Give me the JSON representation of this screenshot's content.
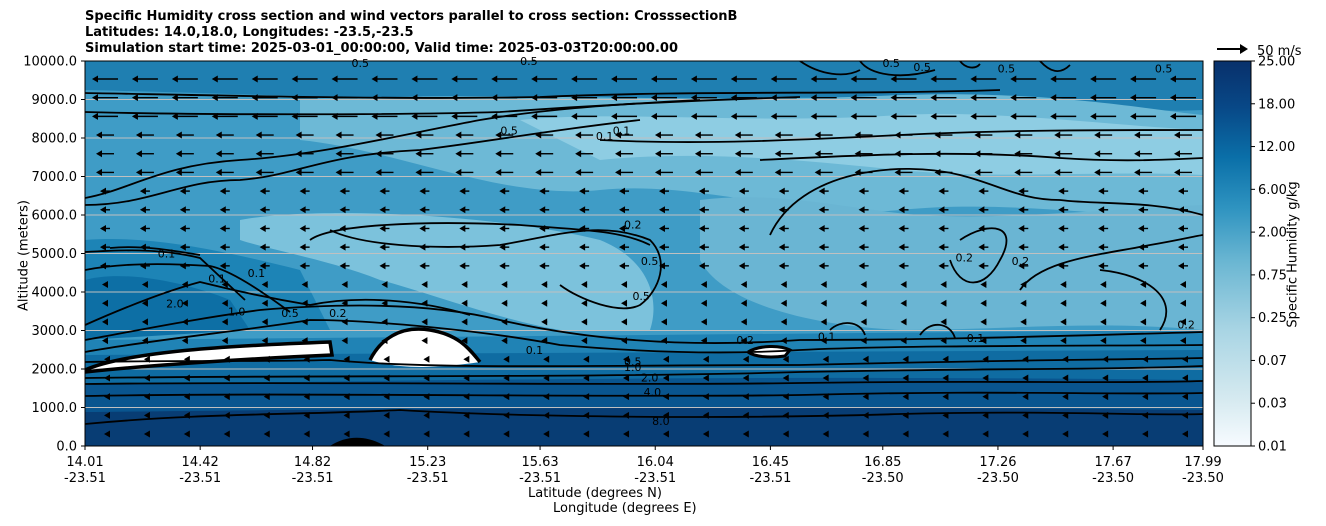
{
  "chart_data": {
    "type": "contourf-cross-section",
    "title_lines": [
      "Specific Humidity cross section and wind vectors parallel to cross section: CrosssectionB",
      "Latitudes: 14.0,18.0, Longitudes: -23.5,-23.5",
      "Simulation start time: 2025-03-01_00:00:00, Valid time: 2025-03-03T20:00:00.00"
    ],
    "ylabel": "Altitude (meters)",
    "xlabel_lat": "Latitude (degrees N)",
    "xlabel_lon": "Longitude (degrees E)",
    "ylim": [
      0,
      10000
    ],
    "y_ticks": [
      "0.0",
      "1000.0",
      "2000.0",
      "3000.0",
      "4000.0",
      "5000.0",
      "6000.0",
      "7000.0",
      "8000.0",
      "9000.0",
      "10000.0"
    ],
    "y_tick_values": [
      0,
      1000,
      2000,
      3000,
      4000,
      5000,
      6000,
      7000,
      8000,
      9000,
      10000
    ],
    "x_ticks_lat": [
      "14.01",
      "14.42",
      "14.82",
      "15.23",
      "15.63",
      "16.04",
      "16.45",
      "16.85",
      "17.26",
      "17.67",
      "17.99"
    ],
    "x_ticks_lon": [
      "-23.51",
      "-23.51",
      "-23.51",
      "-23.51",
      "-23.51",
      "-23.51",
      "-23.51",
      "-23.50",
      "-23.50",
      "-23.50",
      "-23.50"
    ],
    "x_tick_values": [
      14.01,
      14.42,
      14.82,
      15.23,
      15.63,
      16.04,
      16.45,
      16.85,
      17.26,
      17.67,
      17.99
    ],
    "xlim": [
      14.01,
      17.99
    ],
    "colorbar": {
      "label": "Specific Humidity g/kg",
      "tick_labels": [
        "0.01",
        "0.03",
        "0.07",
        "0.25",
        "0.75",
        "2.00",
        "6.00",
        "12.00",
        "18.00",
        "25.00"
      ],
      "levels": 20
    },
    "quiver_key": "50 m/s",
    "contour_labels": [
      {
        "text": "0.1",
        "lat": 14.3,
        "alt": 5000
      },
      {
        "text": "0.1",
        "lat": 14.62,
        "alt": 4500
      },
      {
        "text": "0.1",
        "lat": 14.48,
        "alt": 4350
      },
      {
        "text": "2.0",
        "lat": 14.33,
        "alt": 3700
      },
      {
        "text": "1.0",
        "lat": 14.55,
        "alt": 3500
      },
      {
        "text": "0.5",
        "lat": 14.74,
        "alt": 3450
      },
      {
        "text": "0.2",
        "lat": 14.91,
        "alt": 3450
      },
      {
        "text": "0.5",
        "lat": 15.52,
        "alt": 8200
      },
      {
        "text": "0.1",
        "lat": 15.86,
        "alt": 8050
      },
      {
        "text": "0.1",
        "lat": 15.92,
        "alt": 8200
      },
      {
        "text": "0.2",
        "lat": 15.96,
        "alt": 5750
      },
      {
        "text": "0.5",
        "lat": 16.02,
        "alt": 4800
      },
      {
        "text": "0.5",
        "lat": 15.99,
        "alt": 3900
      },
      {
        "text": "0.1",
        "lat": 15.61,
        "alt": 2500
      },
      {
        "text": "0.5",
        "lat": 15.96,
        "alt": 2200
      },
      {
        "text": "1.0",
        "lat": 15.96,
        "alt": 2050
      },
      {
        "text": "2.0",
        "lat": 16.02,
        "alt": 1780
      },
      {
        "text": "4.0",
        "lat": 16.03,
        "alt": 1400
      },
      {
        "text": "8.0",
        "lat": 16.06,
        "alt": 650
      },
      {
        "text": "0.2",
        "lat": 16.36,
        "alt": 2750
      },
      {
        "text": "0.1",
        "lat": 16.65,
        "alt": 2850
      },
      {
        "text": "0.1",
        "lat": 17.18,
        "alt": 2800
      },
      {
        "text": "0.2",
        "lat": 17.14,
        "alt": 4900
      },
      {
        "text": "0.2",
        "lat": 17.34,
        "alt": 4800
      },
      {
        "text": "0.2",
        "lat": 17.93,
        "alt": 3150
      },
      {
        "text": "0.5",
        "lat": 16.99,
        "alt": 9850
      },
      {
        "text": "0.5",
        "lat": 17.29,
        "alt": 9800
      },
      {
        "text": "0.5",
        "lat": 17.85,
        "alt": 9800
      },
      {
        "text": "0.5",
        "lat": 16.88,
        "alt": 9950
      },
      {
        "text": "0.5",
        "lat": 14.99,
        "alt": 9950
      },
      {
        "text": "0.5",
        "lat": 15.59,
        "alt": 10000
      }
    ]
  }
}
